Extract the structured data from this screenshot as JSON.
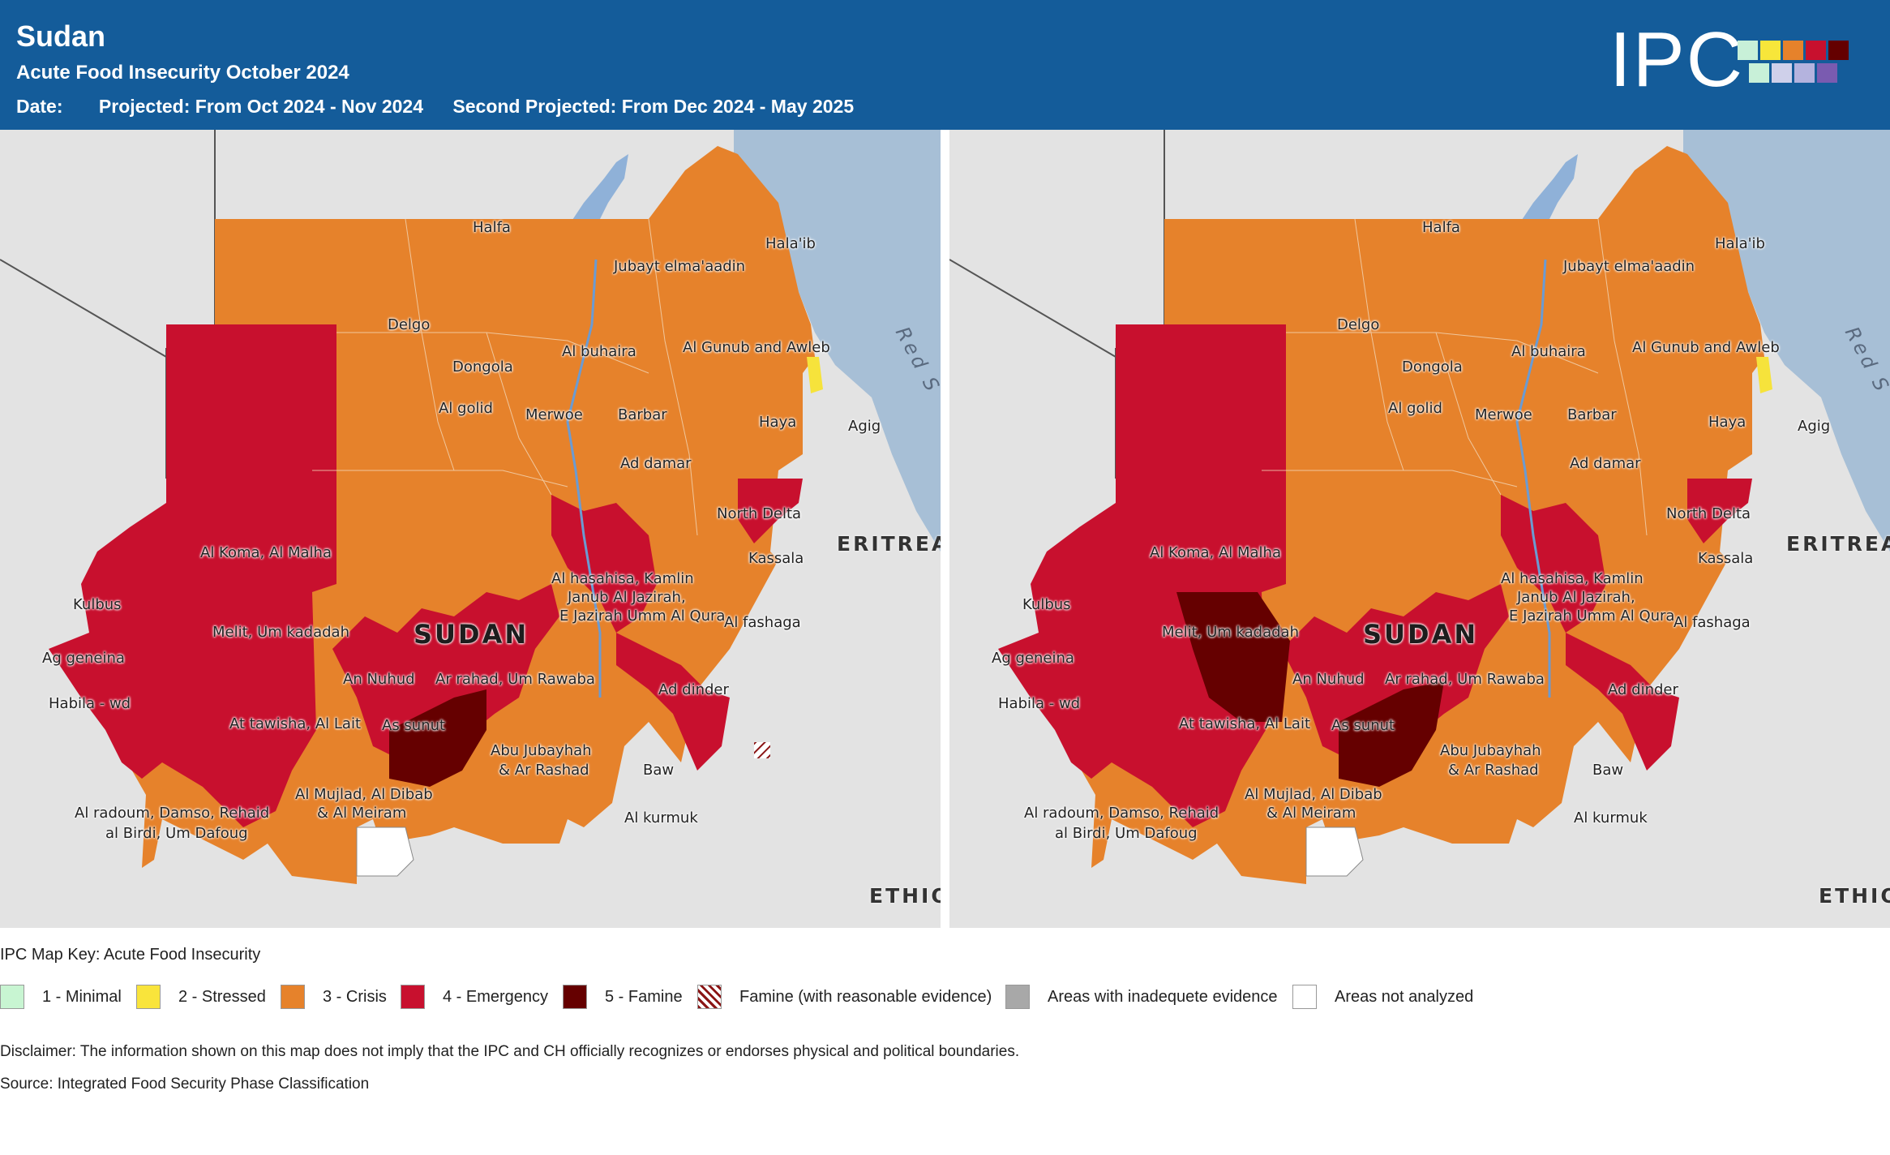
{
  "header": {
    "country": "Sudan",
    "subtitle": "Acute Food Insecurity October 2024",
    "date_label": "Date:",
    "projected": "Projected: From Oct 2024 - Nov 2024",
    "second_projected": "Second Projected: From Dec 2024 - May 2025"
  },
  "logo": {
    "text": "IPC",
    "colors": [
      "#c8f0d8",
      "#f7e63a",
      "#e6822b",
      "#c8102e",
      "#640000",
      "#c8f0d8",
      "#cfd0ea",
      "#b4b3de",
      "#7a5bb0"
    ]
  },
  "map": {
    "country_label": "SUDAN",
    "neighbors": [
      "ERITREA",
      "ETHIO"
    ],
    "sea_label": "Red S",
    "places": [
      "Halfa",
      "Hala'ib",
      "Jubayt elma'aadin",
      "Delgo",
      "Al buhaira",
      "Al Gunub and Awleb",
      "Dongola",
      "Al golid",
      "Merwoe",
      "Barbar",
      "Haya",
      "Agig",
      "Ad damar",
      "North Delta",
      "Al Koma, Al Malha",
      "Kassala",
      "Al hasahisa, Kamlin",
      "Janub Al Jazirah,",
      "E Jazirah Umm Al Qura",
      "Kulbus",
      "Melit, Um kadadah",
      "Al fashaga",
      "Ag geneina",
      "An Nuhud",
      "Ar rahad, Um Rawaba",
      "Habila - wd",
      "Ad dinder",
      "At tawisha, Al Lait",
      "As sunut",
      "Abu Jubayhah",
      "& Ar Rashad",
      "Baw",
      "Al Mujlad, Al Dibab",
      "& Al Meiram",
      "Al radoum, Damso, Rehaid",
      "al Birdi, Um Dafoug",
      "Al kurmuk"
    ]
  },
  "legend": {
    "title": "IPC Map Key: Acute Food Insecurity",
    "items": [
      {
        "label": "1 - Minimal",
        "color": "#c8f5d2"
      },
      {
        "label": "2 - Stressed",
        "color": "#f9e43b"
      },
      {
        "label": "3 - Crisis",
        "color": "#e6822b"
      },
      {
        "label": "4 - Emergency",
        "color": "#c8102e"
      },
      {
        "label": "5 - Famine",
        "color": "#650000"
      },
      {
        "label": "Famine (with reasonable evidence)",
        "color": "hatch"
      },
      {
        "label": "Areas with inadequete evidence",
        "color": "#a8a8a8"
      },
      {
        "label": "Areas not analyzed",
        "color": "#ffffff"
      }
    ]
  },
  "disclaimer": "Disclaimer: The information shown on this map does not imply that the IPC and CH officially recognizes or endorses physical and political boundaries.",
  "source": "Source: Integrated Food Security Phase Classification"
}
